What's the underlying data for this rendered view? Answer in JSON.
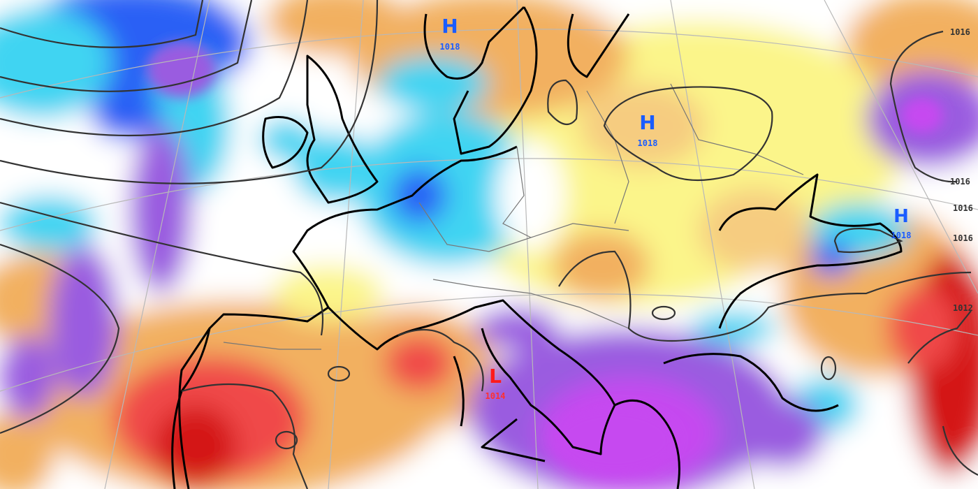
{
  "map": {
    "type": "weather forecast map, sea-level pressure isobars over precipitation/anomaly field, Europe",
    "colors": {
      "dark_red": "#d41414",
      "red": "#f04848",
      "orange": "#f2b060",
      "light_orange": "#f6cc80",
      "yellow": "#fbf58a",
      "white": "#ffffff",
      "cyan": "#3fd4f2",
      "blue": "#2a60f5",
      "purple": "#9a5ce0",
      "magenta": "#c648f0",
      "isobar": "#333333",
      "high_label": "#1a5cff",
      "low_label": "#ff1a1a"
    },
    "pressure_centers": [
      {
        "type": "H",
        "value": "1018",
        "region": "Norway"
      },
      {
        "type": "H",
        "value": "1018",
        "region": "Poland / Belarus"
      },
      {
        "type": "H",
        "value": "1018",
        "region": "Black Sea"
      },
      {
        "type": "L",
        "value": "1014",
        "region": "Tyrrhenian Sea"
      }
    ],
    "edge_isobar_labels": [
      "1016",
      "1016",
      "1016",
      "1016",
      "1012"
    ]
  }
}
